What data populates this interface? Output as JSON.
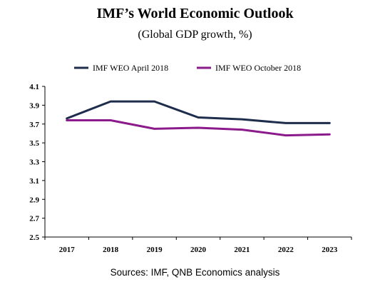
{
  "header": {
    "title": "IMF’s World Economic Outlook",
    "subtitle": "(Global GDP growth, %)"
  },
  "footer": {
    "source": "Sources: IMF, QNB Economics analysis"
  },
  "chart_data": {
    "type": "line",
    "title": "IMF’s World Economic Outlook",
    "subtitle": "(Global GDP growth, %)",
    "xlabel": "",
    "ylabel": "",
    "categories": [
      "2017",
      "2018",
      "2019",
      "2020",
      "2021",
      "2022",
      "2023"
    ],
    "y_ticks": [
      "4.1",
      "3.9",
      "3.7",
      "3.5",
      "3.3",
      "3.1",
      "2.9",
      "2.7",
      "2.5"
    ],
    "ylim": [
      2.5,
      4.1
    ],
    "grid": false,
    "legend_position": "top",
    "series": [
      {
        "name": "IMF WEO April 2018",
        "color": "#1f2d4d",
        "values": [
          3.76,
          3.94,
          3.94,
          3.77,
          3.75,
          3.71,
          3.71
        ]
      },
      {
        "name": "IMF WEO October 2018",
        "color": "#8b1a8b",
        "values": [
          3.74,
          3.74,
          3.65,
          3.66,
          3.64,
          3.58,
          3.59
        ]
      }
    ]
  }
}
